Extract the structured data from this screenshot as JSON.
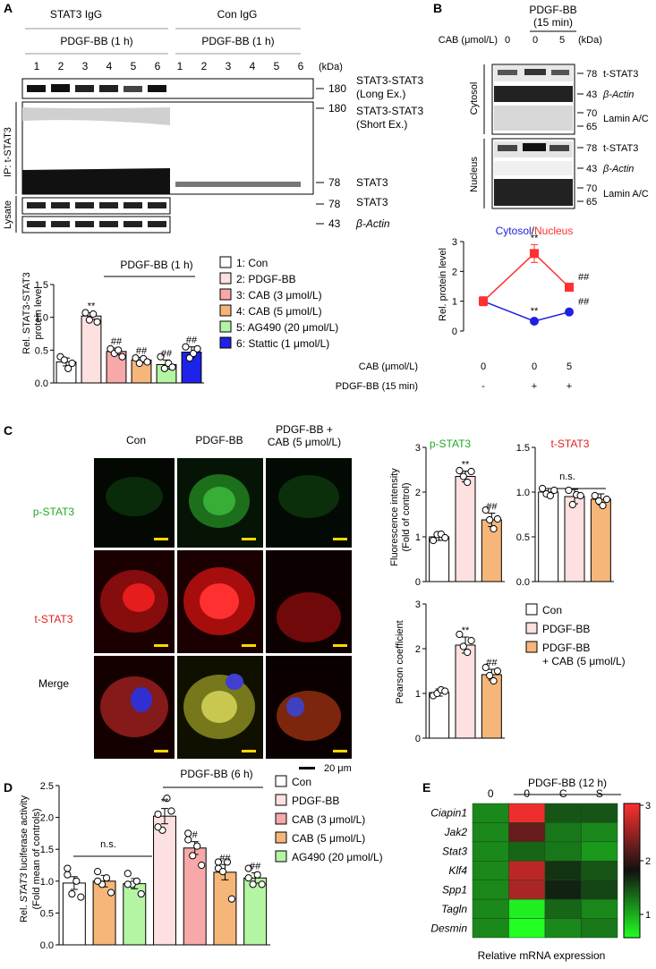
{
  "panels": {
    "A": "A",
    "B": "B",
    "C": "C",
    "D": "D",
    "E": "E"
  },
  "panelA": {
    "stat3_igg": "STAT3 IgG",
    "con_igg": "Con IgG",
    "pdgf_left": "PDGF-BB (1 h)",
    "pdgf_right": "PDGF-BB (1 h)",
    "lanes": [
      "1",
      "2",
      "3",
      "4",
      "5",
      "6",
      "1",
      "2",
      "3",
      "4",
      "5",
      "6"
    ],
    "kda": "(kDa)",
    "ip_label": "IP: t-STAT3",
    "lysate": "Lysate",
    "bands": [
      {
        "mw": "180",
        "label": "STAT3-STAT3",
        "sub": "(Long Ex.)"
      },
      {
        "mw": "180",
        "label": "STAT3-STAT3",
        "sub": "(Short Ex.)"
      },
      {
        "mw": "78",
        "label": "STAT3",
        "sub": ""
      },
      {
        "mw": "78",
        "label": "STAT3",
        "sub": ""
      },
      {
        "mw": "43",
        "label": "β-Actin",
        "sub": ""
      }
    ],
    "chart_title": "PDGF-BB (1 h)",
    "ylabel_1": "Rel. STAT3-STAT3",
    "ylabel_2": "protein level",
    "legend": [
      "1: Con",
      "2: PDGF-BB",
      "3: CAB (3 μmol/L)",
      "4: CAB (5 μmol/L)",
      "5: AG490 (20 μmol/L)",
      "6: Stattic (1 μmol/L)"
    ]
  },
  "panelB": {
    "pdgf": "PDGF-BB",
    "time": "(15 min)",
    "cab_label": "CAB (μmol/L)",
    "cab_vals": [
      "0",
      "0",
      "5"
    ],
    "kda": "(kDa)",
    "cytosol": "Cytosol",
    "nucleus": "Nucleus",
    "rows": [
      {
        "mw": "78",
        "label": "t-STAT3"
      },
      {
        "mw": "43",
        "label": "β-Actin"
      },
      {
        "mw": "70",
        "mw2": "65",
        "label": "Lamin A/C"
      },
      {
        "mw": "78",
        "label": "t-STAT3"
      },
      {
        "mw": "43",
        "label": "β-Actin"
      },
      {
        "mw": "70",
        "mw2": "65",
        "label": "Lamin A/C"
      }
    ],
    "legend_cytosol": "Cytosol",
    "legend_sep": "/",
    "legend_nucleus": "Nucleus",
    "ylabel": "Rel. protein level",
    "row_cab": "CAB (μmol/L)",
    "row_pdgf": "PDGF-BB (15 min)",
    "cab_row": [
      "0",
      "0",
      "5"
    ],
    "pdgf_row": [
      "-",
      "+",
      "+"
    ]
  },
  "panelC": {
    "cols": [
      "Con",
      "PDGF-BB",
      "PDGF-BB +",
      "CAB (5 μmol/L)"
    ],
    "rows": [
      "p-STAT3",
      "t-STAT3",
      "Merge"
    ],
    "scale": "20 μm",
    "title_p": "p-STAT3",
    "title_t": "t-STAT3",
    "ns": "n.s.",
    "ylabel_f1": "Fluorescence intensity",
    "ylabel_f2": "(Fold of control)",
    "ylabel_p": "Pearson coefficient",
    "legend": [
      "Con",
      "PDGF-BB",
      "PDGF-BB",
      "+ CAB (5 μmol/L)"
    ]
  },
  "panelD": {
    "title": "PDGF-BB (6 h)",
    "ns": "n.s.",
    "ylabel_pre": "Rel. ",
    "ylabel_gene": "STAT3",
    "ylabel_post": " luciferase activity",
    "ylabel_2": "(Fold mean of controls)",
    "legend": [
      "Con",
      "PDGF-BB",
      "CAB (3 μmol/L)",
      "CAB (5 μmol/L)",
      "AG490 (20 μmol/L)"
    ]
  },
  "panelE": {
    "title": "PDGF-BB (12 h)",
    "cols": [
      "0",
      "0",
      "C",
      "S"
    ],
    "genes": [
      "Ciapin1",
      "Jak2",
      "Stat3",
      "Klf4",
      "Spp1",
      "Tagln",
      "Desmin"
    ],
    "xlabel": "Relative mRNA expression",
    "scale_ticks": [
      "3",
      "2",
      "1"
    ]
  },
  "chart_data": [
    {
      "id": "A",
      "type": "bar",
      "categories": [
        "1",
        "2",
        "3",
        "4",
        "5",
        "6"
      ],
      "values": [
        0.32,
        1.02,
        0.48,
        0.35,
        0.28,
        0.47
      ],
      "errors": [
        0.06,
        0.05,
        0.05,
        0.04,
        0.07,
        0.08
      ],
      "points": [
        [
          0.4,
          0.35,
          0.22,
          0.3
        ],
        [
          1.07,
          0.96,
          1.05,
          0.93
        ],
        [
          0.52,
          0.45,
          0.5,
          0.4
        ],
        [
          0.38,
          0.3,
          0.37,
          0.32
        ],
        [
          0.4,
          0.22,
          0.3,
          0.24
        ],
        [
          0.55,
          0.38,
          0.45,
          0.52
        ]
      ],
      "colors": [
        "#ffffff",
        "#fde0e0",
        "#f7a8a8",
        "#f6b679",
        "#b4f5a3",
        "#1f22e8"
      ],
      "ylim": [
        0,
        1.5
      ],
      "yticks": [
        "0.0",
        "0.5",
        "1.0",
        "1.5"
      ],
      "annotations": [
        "",
        "**",
        "##",
        "##",
        "##",
        "##"
      ]
    },
    {
      "id": "B",
      "type": "line",
      "x": [
        "1",
        "2",
        "3"
      ],
      "series": [
        {
          "name": "Cytosol",
          "color": "#2020e0",
          "values": [
            1.0,
            0.33,
            0.64
          ],
          "errors": [
            0.12,
            0.04,
            0.04
          ],
          "annotations": [
            "",
            "**",
            "##"
          ]
        },
        {
          "name": "Nucleus",
          "color": "#ff3030",
          "values": [
            1.0,
            2.6,
            1.47
          ],
          "errors": [
            0.15,
            0.3,
            0.12
          ],
          "annotations": [
            "",
            "**",
            "##"
          ]
        }
      ],
      "ylim": [
        0,
        3
      ],
      "yticks": [
        "0",
        "1",
        "2",
        "3"
      ]
    },
    {
      "id": "C-p-STAT3",
      "type": "bar",
      "categories": [
        "Con",
        "PDGF-BB",
        "PDGF-BB + CAB (5 μmol/L)"
      ],
      "values": [
        1.0,
        2.35,
        1.38
      ],
      "errors": [
        0.08,
        0.12,
        0.15
      ],
      "points": [
        [
          0.92,
          1.05,
          1.06,
          0.98
        ],
        [
          2.48,
          2.35,
          2.22,
          2.46
        ],
        [
          1.6,
          1.38,
          1.18,
          1.4
        ]
      ],
      "colors": [
        "#ffffff",
        "#fde0e0",
        "#f6b679"
      ],
      "ylim": [
        0,
        3
      ],
      "yticks": [
        "0",
        "1",
        "2",
        "3"
      ],
      "annotations": [
        "",
        "**",
        "##"
      ]
    },
    {
      "id": "C-t-STAT3",
      "type": "bar",
      "categories": [
        "Con",
        "PDGF-BB",
        "PDGF-BB + CAB (5 μmol/L)"
      ],
      "values": [
        1.0,
        0.95,
        0.92
      ],
      "errors": [
        0.04,
        0.08,
        0.06
      ],
      "points": [
        [
          1.04,
          0.98,
          0.96,
          1.02
        ],
        [
          1.02,
          0.86,
          0.97,
          0.96
        ],
        [
          0.96,
          0.9,
          0.85,
          0.92
        ]
      ],
      "colors": [
        "#ffffff",
        "#fde0e0",
        "#f6b679"
      ],
      "ylim": [
        0,
        1.5
      ],
      "yticks": [
        "0.0",
        "0.5",
        "1.0",
        "1.5"
      ],
      "annotations": [
        "",
        "",
        ""
      ]
    },
    {
      "id": "C-Pearson",
      "type": "bar",
      "categories": [
        "Con",
        "PDGF-BB",
        "PDGF-BB + CAB (5 μmol/L)"
      ],
      "values": [
        1.02,
        2.08,
        1.42
      ],
      "errors": [
        0.08,
        0.18,
        0.12
      ],
      "points": [
        [
          0.95,
          1.0,
          1.08,
          1.05
        ],
        [
          2.32,
          2.05,
          1.92,
          2.18
        ],
        [
          1.58,
          1.4,
          1.28,
          1.5
        ]
      ],
      "colors": [
        "#ffffff",
        "#fde0e0",
        "#f6b679"
      ],
      "ylim": [
        0,
        3
      ],
      "yticks": [
        "0",
        "1",
        "2",
        "3"
      ],
      "annotations": [
        "",
        "**",
        "##"
      ]
    },
    {
      "id": "D",
      "type": "bar",
      "categories": [
        "Con",
        "CAB (5 μmol/L)",
        "AG490 (20 μmol/L)",
        "PDGF-BB",
        "CAB (3 μmol/L)",
        "CAB (5 μmol/L)",
        "AG490 (20 μmol/L)"
      ],
      "values": [
        0.97,
        1.0,
        0.96,
        2.02,
        1.52,
        1.14,
        1.05
      ],
      "errors": [
        0.1,
        0.09,
        0.08,
        0.12,
        0.1,
        0.12,
        0.08
      ],
      "points": [
        [
          1.2,
          0.8,
          1.0,
          0.75,
          1.1
        ],
        [
          1.15,
          0.95,
          1.05,
          0.82,
          1.0
        ],
        [
          1.12,
          0.95,
          1.0,
          0.8,
          0.95
        ],
        [
          2.05,
          1.8,
          2.3,
          2.1,
          1.85
        ],
        [
          1.65,
          1.4,
          1.55,
          1.25,
          1.75
        ],
        [
          1.2,
          1.15,
          1.3,
          0.72,
          1.3
        ],
        [
          1.2,
          0.95,
          1.1,
          0.95,
          1.05
        ]
      ],
      "colors": [
        "#ffffff",
        "#f6b679",
        "#b4f5a3",
        "#fde0e0",
        "#f7a8a8",
        "#f6b679",
        "#b4f5a3"
      ],
      "ylim": [
        0,
        2.5
      ],
      "yticks": [
        "0.0",
        "0.5",
        "1.0",
        "1.5",
        "2.0",
        "2.5"
      ],
      "annotations": [
        "",
        "",
        "",
        "**",
        "#",
        "##",
        "##"
      ]
    },
    {
      "id": "E",
      "type": "heatmap",
      "rows": [
        "Ciapin1",
        "Jak2",
        "Stat3",
        "Klf4",
        "Spp1",
        "Tagln",
        "Desmin"
      ],
      "cols": [
        "0",
        "0",
        "C",
        "S"
      ],
      "values": [
        [
          1.0,
          3.0,
          1.3,
          1.3
        ],
        [
          1.0,
          2.2,
          1.1,
          1.0
        ],
        [
          1.0,
          1.2,
          1.1,
          0.9
        ],
        [
          1.0,
          2.7,
          1.5,
          1.3
        ],
        [
          1.0,
          2.6,
          1.6,
          1.4
        ],
        [
          1.0,
          0.4,
          1.2,
          1.0
        ],
        [
          1.0,
          0.3,
          1.0,
          1.1
        ]
      ],
      "range": [
        0.3,
        3.1
      ]
    }
  ]
}
